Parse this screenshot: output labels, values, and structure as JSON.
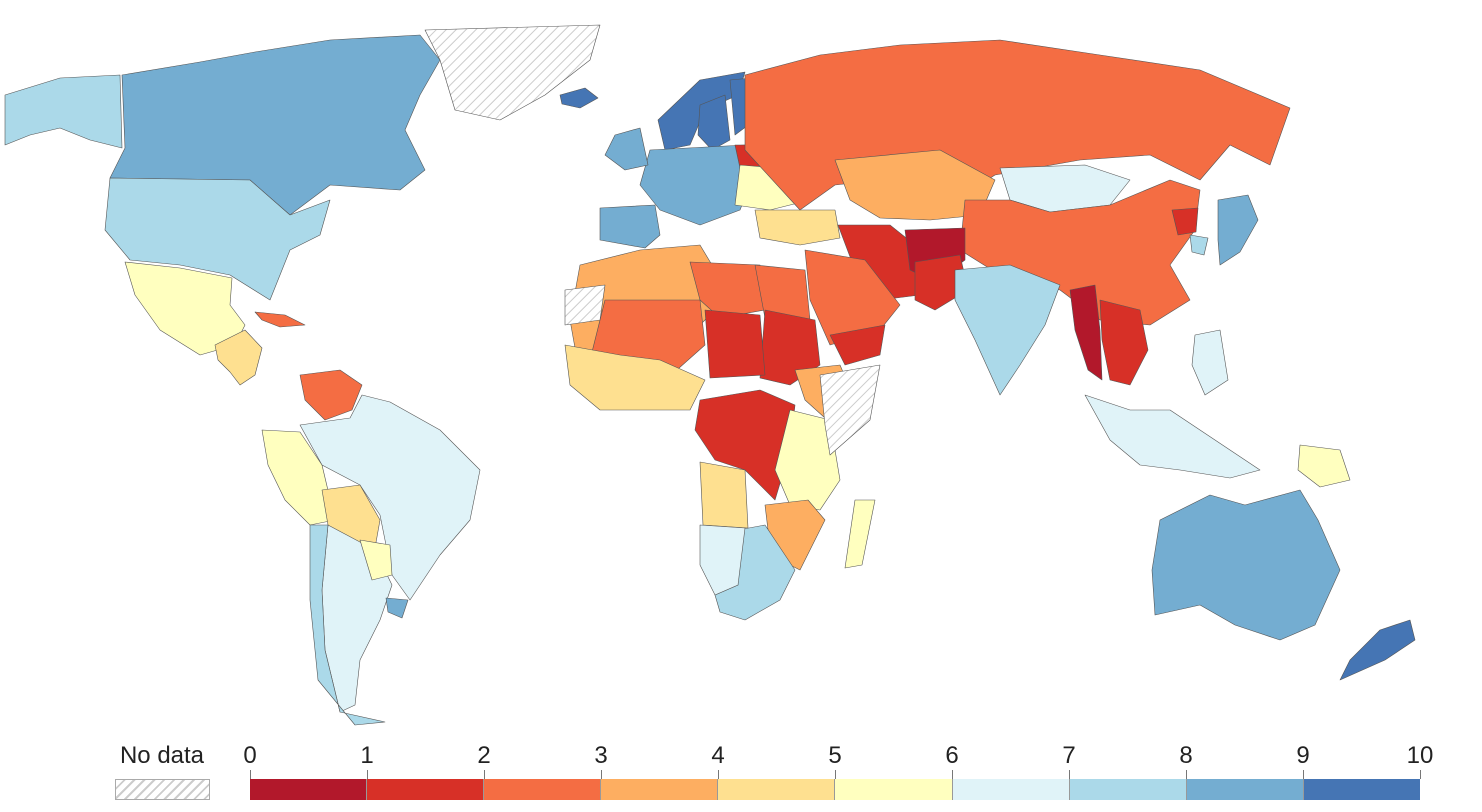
{
  "legend": {
    "no_data_label": "No data",
    "ticks": [
      "0",
      "1",
      "2",
      "3",
      "4",
      "5",
      "6",
      "7",
      "8",
      "9",
      "10"
    ],
    "colors": [
      "#b2182b",
      "#d73027",
      "#f46d43",
      "#fdae61",
      "#fee090",
      "#ffffbf",
      "#e0f3f8",
      "#abd9e9",
      "#74add1",
      "#4575b4"
    ],
    "no_data_pattern": "#cccccc"
  },
  "chart_data": {
    "type": "heatmap",
    "scale": {
      "min": 0,
      "max": 10,
      "step": 1
    },
    "regions": [
      {
        "name": "Canada",
        "bin": 8
      },
      {
        "name": "United States",
        "bin": 7
      },
      {
        "name": "Alaska",
        "bin": 7
      },
      {
        "name": "Mexico",
        "bin": 5
      },
      {
        "name": "Central America",
        "bin": 4
      },
      {
        "name": "Cuba",
        "bin": 2
      },
      {
        "name": "Greenland",
        "bin": null
      },
      {
        "name": "Iceland",
        "bin": 9
      },
      {
        "name": "Venezuela",
        "bin": 2
      },
      {
        "name": "Brazil",
        "bin": 6
      },
      {
        "name": "Peru",
        "bin": 5
      },
      {
        "name": "Bolivia",
        "bin": 4
      },
      {
        "name": "Argentina",
        "bin": 6
      },
      {
        "name": "Chile",
        "bin": 7
      },
      {
        "name": "Uruguay",
        "bin": 8
      },
      {
        "name": "Paraguay",
        "bin": 5
      },
      {
        "name": "Norway",
        "bin": 9
      },
      {
        "name": "Sweden",
        "bin": 9
      },
      {
        "name": "Finland",
        "bin": 9
      },
      {
        "name": "Western Europe",
        "bin": 8
      },
      {
        "name": "Iberia",
        "bin": 8
      },
      {
        "name": "UK",
        "bin": 8
      },
      {
        "name": "Belarus",
        "bin": 1
      },
      {
        "name": "Eastern Europe",
        "bin": 5
      },
      {
        "name": "Turkey",
        "bin": 4
      },
      {
        "name": "Russia",
        "bin": 2
      },
      {
        "name": "Kazakhstan",
        "bin": 3
      },
      {
        "name": "Mongolia",
        "bin": 6
      },
      {
        "name": "China",
        "bin": 2
      },
      {
        "name": "Iran",
        "bin": 1
      },
      {
        "name": "Afghanistan",
        "bin": 0
      },
      {
        "name": "Pakistan",
        "bin": 1
      },
      {
        "name": "India",
        "bin": 7
      },
      {
        "name": "Myanmar",
        "bin": 0
      },
      {
        "name": "Southeast Asia",
        "bin": 1
      },
      {
        "name": "Japan",
        "bin": 8
      },
      {
        "name": "South Korea",
        "bin": 7
      },
      {
        "name": "North Korea",
        "bin": 1
      },
      {
        "name": "Saudi Arabia",
        "bin": 2
      },
      {
        "name": "Yemen",
        "bin": 1
      },
      {
        "name": "Indonesia",
        "bin": 6
      },
      {
        "name": "Philippines",
        "bin": 6
      },
      {
        "name": "Papua New Guinea",
        "bin": 5
      },
      {
        "name": "Australia",
        "bin": 8
      },
      {
        "name": "New Zealand",
        "bin": 9
      },
      {
        "name": "North Africa",
        "bin": 3
      },
      {
        "name": "Libya",
        "bin": 2
      },
      {
        "name": "Egypt",
        "bin": 2
      },
      {
        "name": "Sahel",
        "bin": 2
      },
      {
        "name": "Sudan",
        "bin": 1
      },
      {
        "name": "Chad",
        "bin": 1
      },
      {
        "name": "West Africa",
        "bin": 4
      },
      {
        "name": "Ethiopia",
        "bin": 3
      },
      {
        "name": "DR Congo",
        "bin": 1
      },
      {
        "name": "Angola",
        "bin": 4
      },
      {
        "name": "East Africa",
        "bin": 5
      },
      {
        "name": "Mozambique",
        "bin": 3
      },
      {
        "name": "South Africa",
        "bin": 7
      },
      {
        "name": "Namibia",
        "bin": 6
      },
      {
        "name": "Madagascar",
        "bin": 5
      },
      {
        "name": "Somalia",
        "bin": null
      },
      {
        "name": "Western Sahara",
        "bin": null
      }
    ]
  }
}
